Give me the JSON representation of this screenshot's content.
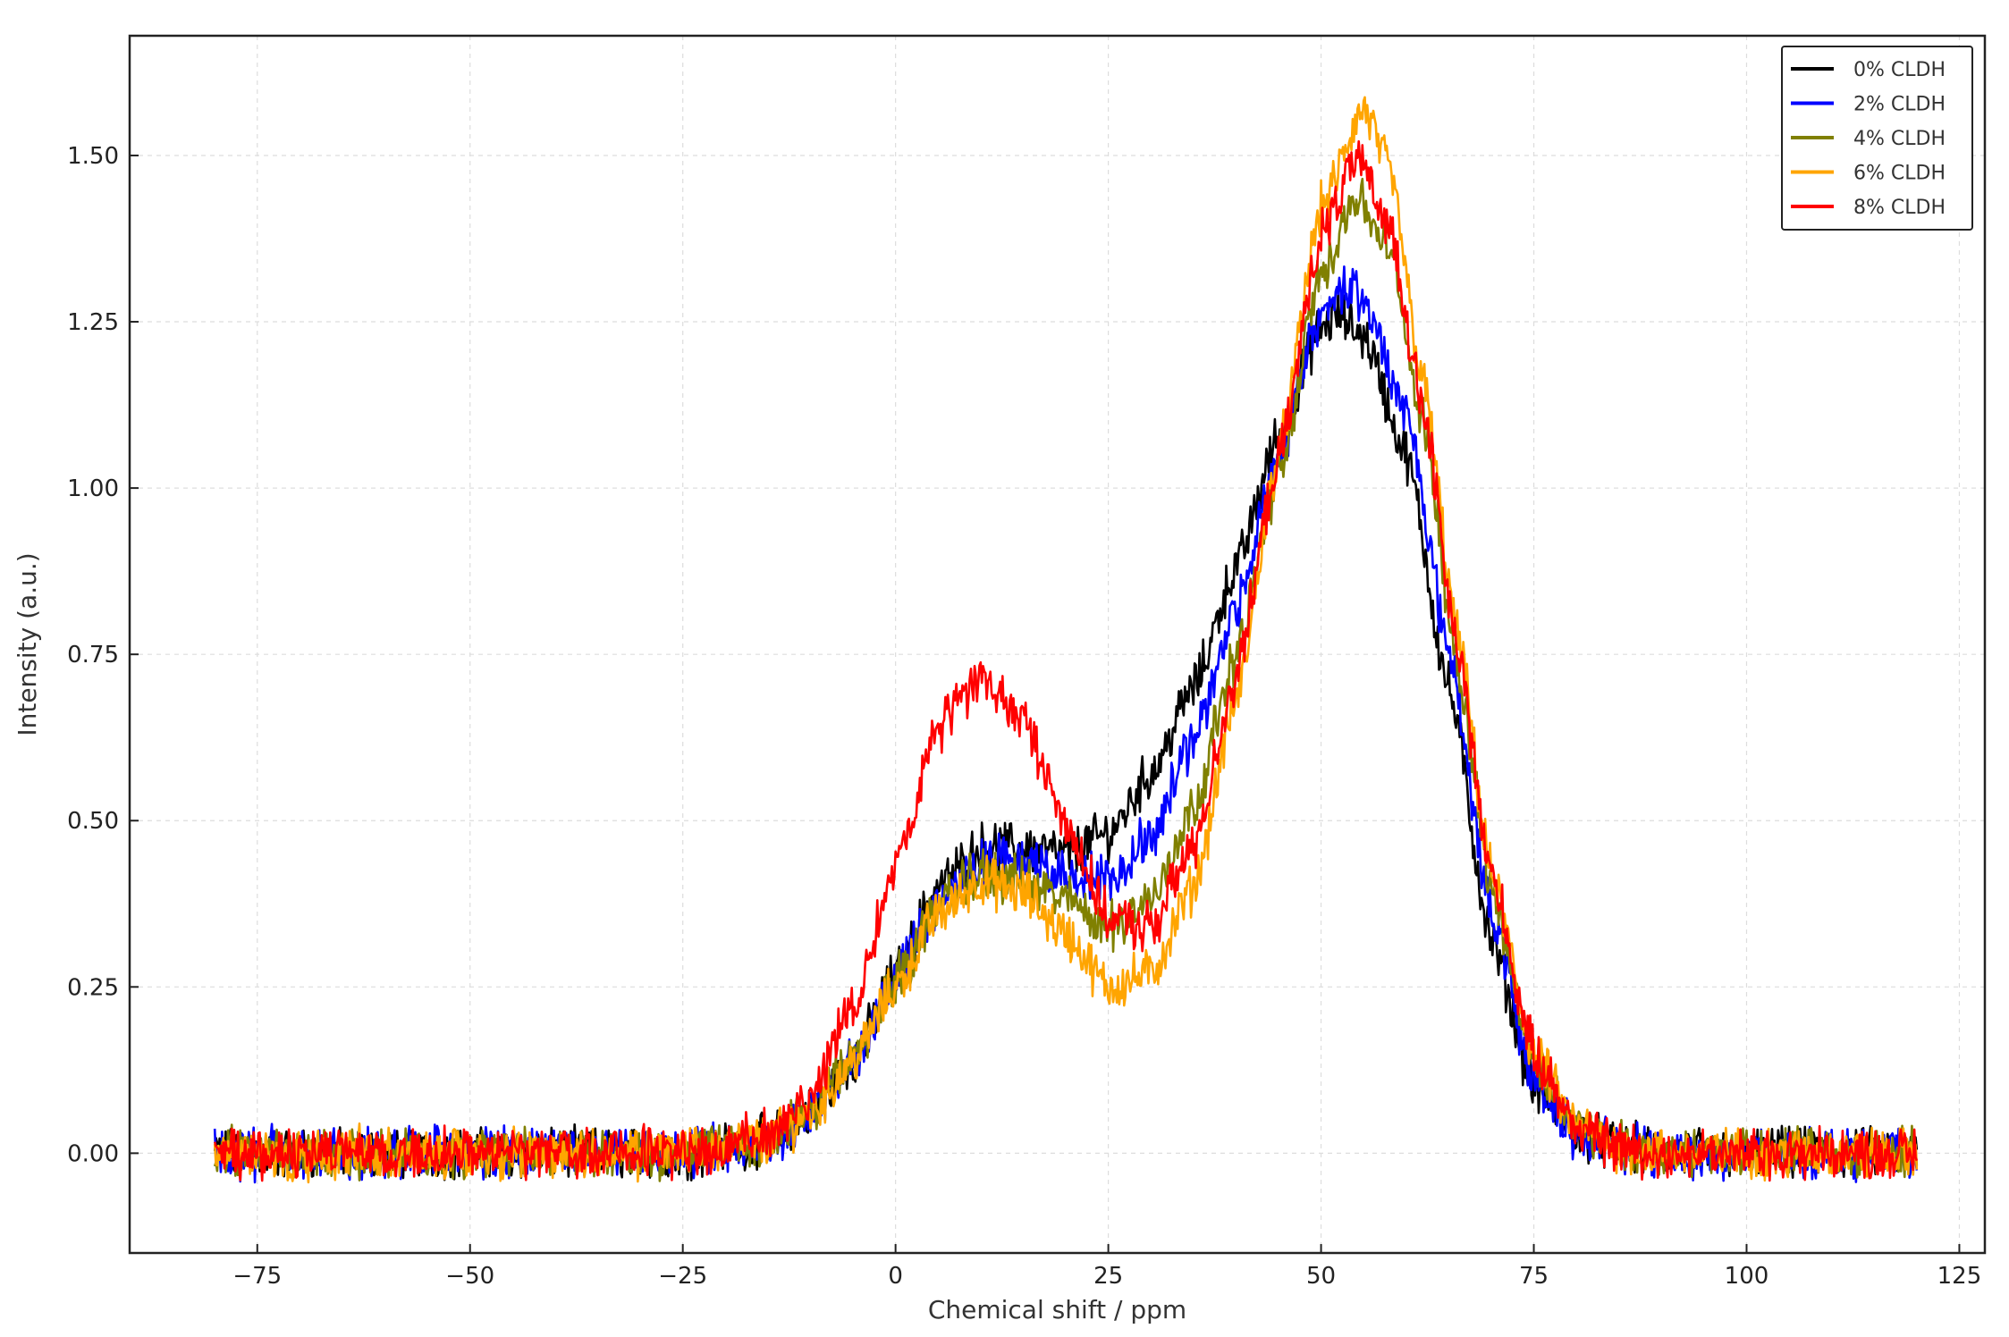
{
  "chart_data": {
    "type": "line",
    "title": "",
    "xlabel": "Chemical shift / ppm",
    "ylabel": "Intensity (a.u.)",
    "xlim": [
      -90,
      128
    ],
    "ylim": [
      -0.15,
      1.68
    ],
    "xticks": [
      -75,
      -50,
      -25,
      0,
      25,
      50,
      75,
      100,
      125
    ],
    "xtick_labels": [
      "−75",
      "−50",
      "−25",
      "0",
      "25",
      "50",
      "75",
      "100",
      "125"
    ],
    "yticks": [
      0.0,
      0.25,
      0.5,
      0.75,
      1.0,
      1.25,
      1.5
    ],
    "ytick_labels": [
      "0.00",
      "0.25",
      "0.50",
      "0.75",
      "1.00",
      "1.25",
      "1.50"
    ],
    "grid": true,
    "legend_position": "top-right",
    "series": [
      {
        "name": "0% CLDH",
        "color": "#000000",
        "x": [
          -80,
          -60,
          -40,
          -25,
          -20,
          -15,
          -10,
          -5,
          0,
          5,
          10,
          15,
          20,
          25,
          30,
          35,
          40,
          45,
          50,
          52,
          55,
          60,
          65,
          70,
          75,
          80,
          85,
          90,
          100,
          110,
          120
        ],
        "y": [
          0.0,
          0.0,
          0.0,
          0.0,
          0.01,
          0.02,
          0.06,
          0.14,
          0.27,
          0.4,
          0.46,
          0.46,
          0.45,
          0.48,
          0.57,
          0.7,
          0.88,
          1.08,
          1.24,
          1.26,
          1.23,
          1.05,
          0.7,
          0.32,
          0.1,
          0.03,
          0.01,
          0.0,
          0.0,
          0.0,
          0.0
        ]
      },
      {
        "name": "2% CLDH",
        "color": "#0000ff",
        "x": [
          -80,
          -60,
          -40,
          -25,
          -20,
          -15,
          -10,
          -5,
          0,
          5,
          10,
          15,
          20,
          25,
          30,
          35,
          40,
          45,
          50,
          52,
          55,
          60,
          65,
          70,
          75,
          80,
          85,
          90,
          100,
          110,
          120
        ],
        "y": [
          0.0,
          0.0,
          0.0,
          0.0,
          0.01,
          0.02,
          0.06,
          0.14,
          0.26,
          0.38,
          0.44,
          0.44,
          0.42,
          0.41,
          0.48,
          0.62,
          0.82,
          1.05,
          1.26,
          1.3,
          1.28,
          1.12,
          0.76,
          0.36,
          0.11,
          0.03,
          0.01,
          0.0,
          0.0,
          0.0,
          0.0
        ]
      },
      {
        "name": "4% CLDH",
        "color": "#808000",
        "x": [
          -80,
          -60,
          -40,
          -25,
          -20,
          -15,
          -10,
          -5,
          0,
          5,
          10,
          15,
          20,
          25,
          30,
          35,
          40,
          45,
          50,
          54,
          58,
          62,
          66,
          70,
          75,
          80,
          85,
          90,
          100,
          110,
          120
        ],
        "y": [
          0.0,
          0.0,
          0.0,
          0.0,
          0.01,
          0.02,
          0.06,
          0.14,
          0.26,
          0.37,
          0.42,
          0.41,
          0.38,
          0.34,
          0.38,
          0.52,
          0.75,
          1.02,
          1.32,
          1.44,
          1.36,
          1.1,
          0.74,
          0.4,
          0.14,
          0.04,
          0.01,
          0.0,
          0.0,
          0.0,
          0.0
        ]
      },
      {
        "name": "6% CLDH",
        "color": "#ffa500",
        "x": [
          -80,
          -60,
          -40,
          -25,
          -20,
          -15,
          -10,
          -5,
          0,
          5,
          10,
          15,
          20,
          25,
          30,
          35,
          40,
          45,
          50,
          55,
          58,
          62,
          66,
          70,
          75,
          80,
          85,
          90,
          100,
          110,
          120
        ],
        "y": [
          0.0,
          0.0,
          0.0,
          0.0,
          0.01,
          0.02,
          0.06,
          0.14,
          0.25,
          0.36,
          0.41,
          0.39,
          0.33,
          0.25,
          0.27,
          0.4,
          0.68,
          1.05,
          1.42,
          1.57,
          1.48,
          1.16,
          0.78,
          0.42,
          0.15,
          0.04,
          0.01,
          0.0,
          0.0,
          0.0,
          0.0
        ]
      },
      {
        "name": "8% CLDH",
        "color": "#ff0000",
        "x": [
          -80,
          -60,
          -40,
          -25,
          -20,
          -15,
          -10,
          -5,
          0,
          5,
          10,
          15,
          20,
          25,
          30,
          35,
          40,
          45,
          50,
          54,
          58,
          62,
          66,
          70,
          75,
          80,
          85,
          90,
          100,
          110,
          120
        ],
        "y": [
          0.0,
          0.0,
          0.0,
          0.0,
          0.01,
          0.03,
          0.09,
          0.22,
          0.43,
          0.64,
          0.72,
          0.65,
          0.5,
          0.35,
          0.34,
          0.46,
          0.72,
          1.04,
          1.38,
          1.49,
          1.4,
          1.12,
          0.76,
          0.42,
          0.15,
          0.04,
          0.01,
          0.0,
          0.0,
          0.0,
          0.0
        ]
      }
    ]
  }
}
